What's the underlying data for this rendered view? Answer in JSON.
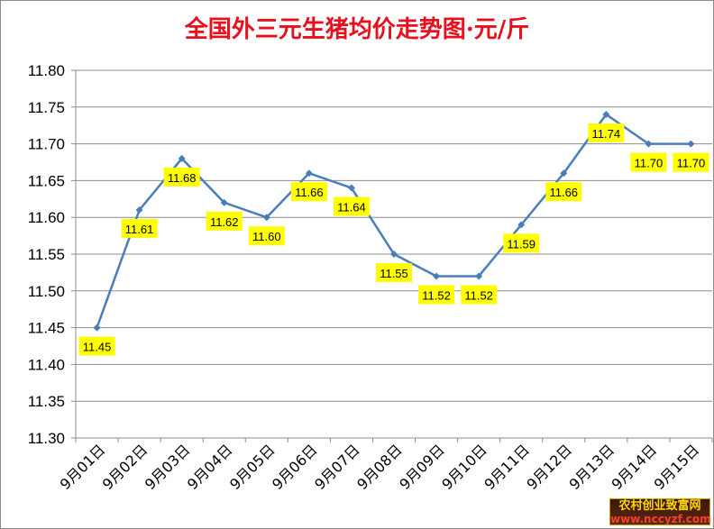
{
  "chart_data": {
    "type": "line",
    "title": "全国外三元生猪均价走势图·元/斤",
    "categories": [
      "9月01日",
      "9月02日",
      "9月03日",
      "9月04日",
      "9月05日",
      "9月06日",
      "9月07日",
      "9月08日",
      "9月09日",
      "9月10日",
      "9月11日",
      "9月12日",
      "9月13日",
      "9月14日",
      "9月15日"
    ],
    "values": [
      11.45,
      11.61,
      11.68,
      11.62,
      11.6,
      11.66,
      11.64,
      11.55,
      11.52,
      11.52,
      11.59,
      11.66,
      11.74,
      11.7,
      11.7
    ],
    "data_labels": [
      "11.45",
      "11.61",
      "11.68",
      "11.62",
      "11.60",
      "11.66",
      "11.64",
      "11.55",
      "11.52",
      "11.52",
      "11.59",
      "11.66",
      "11.74",
      "11.70",
      "11.70"
    ],
    "y_tick_labels": [
      "11.30",
      "11.35",
      "11.40",
      "11.45",
      "11.50",
      "11.55",
      "11.60",
      "11.65",
      "11.70",
      "11.75",
      "11.80"
    ],
    "ylim": [
      11.3,
      11.8
    ],
    "y_step": 0.05,
    "grid": true,
    "legend": "none",
    "xlabel": "",
    "ylabel": "",
    "colors": {
      "title": "#e8101c",
      "line": "#4a7ebb",
      "label_bg": "#ffff00",
      "grid": "#8c8c8c"
    }
  },
  "watermark": {
    "line1": "农村创业致富网",
    "line2": "www.nccyzf.com"
  }
}
